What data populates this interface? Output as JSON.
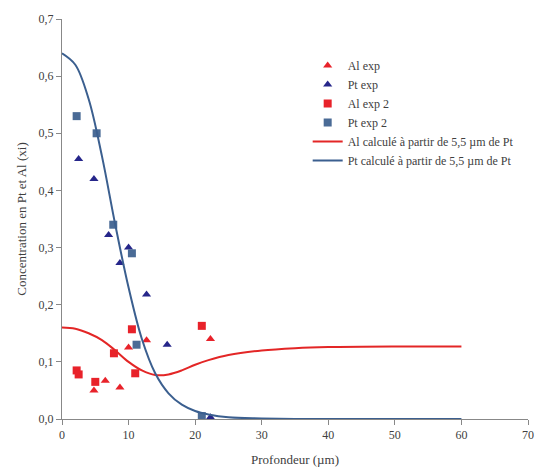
{
  "chart_data": {
    "type": "scatter",
    "x_label": "Profondeur (µm)",
    "y_label": "Concentration en Pt et Al (xi)",
    "xlim": [
      0,
      70
    ],
    "xticks": [
      0,
      10,
      20,
      30,
      40,
      50,
      60,
      70
    ],
    "ylim": [
      0,
      0.7
    ],
    "yticks": [
      {
        "value": 0,
        "label": "0,0"
      },
      {
        "value": 0.1,
        "label": "0,1"
      },
      {
        "value": 0.2,
        "label": "0,2"
      },
      {
        "value": 0.3,
        "label": "0,3"
      },
      {
        "value": 0.4,
        "label": "0,4"
      },
      {
        "value": 0.5,
        "label": "0,5"
      },
      {
        "value": 0.6,
        "label": "0,6"
      },
      {
        "value": 0.7,
        "label": "0,7"
      }
    ],
    "grid": false,
    "legend": "upper right",
    "series": [
      {
        "name": "Al exp",
        "type": "scatter",
        "marker": "triangle-up",
        "color": "#e8222a",
        "x": [
          4.8,
          6.5,
          8.7,
          10,
          12.7,
          22.3
        ],
        "values": [
          0.05,
          0.067,
          0.055,
          0.125,
          0.138,
          0.14
        ]
      },
      {
        "name": "Pt exp",
        "type": "scatter",
        "marker": "triangle-up",
        "color": "#26268a",
        "x": [
          2.5,
          4.8,
          7,
          8.7,
          10,
          12.7,
          15.8,
          22.3
        ],
        "values": [
          0.455,
          0.42,
          0.322,
          0.273,
          0.3,
          0.218,
          0.13,
          0.003
        ]
      },
      {
        "name": "Al exp 2",
        "type": "scatter",
        "marker": "square",
        "color": "#e8222a",
        "x": [
          2.2,
          2.5,
          5,
          7.8,
          10.5,
          11,
          21
        ],
        "values": [
          0.085,
          0.078,
          0.065,
          0.115,
          0.157,
          0.08,
          0.163
        ]
      },
      {
        "name": "Pt exp 2",
        "type": "scatter",
        "marker": "square",
        "color": "#4a6b96",
        "x": [
          2.2,
          5.2,
          7.7,
          10.5,
          11.2,
          21
        ],
        "values": [
          0.53,
          0.5,
          0.34,
          0.29,
          0.13,
          0.005
        ]
      },
      {
        "name": "Al calculé à partir de 5,5 µm de Pt",
        "type": "line",
        "line_style": "solid",
        "color": "#e32626",
        "x": [
          0,
          2,
          4,
          6,
          8,
          10,
          12,
          14,
          16,
          18,
          20,
          22,
          25,
          30,
          35,
          40,
          50,
          60
        ],
        "values": [
          0.16,
          0.158,
          0.15,
          0.138,
          0.12,
          0.1,
          0.085,
          0.077,
          0.078,
          0.085,
          0.095,
          0.103,
          0.112,
          0.12,
          0.124,
          0.126,
          0.127,
          0.127
        ]
      },
      {
        "name": "Pt calculé à partir de 5,5 µm de Pt",
        "type": "line",
        "line_style": "solid",
        "color": "#3b5f8f",
        "x": [
          0,
          2,
          4,
          6,
          8,
          10,
          12,
          14,
          16,
          18,
          20,
          22,
          25,
          30,
          35,
          60
        ],
        "values": [
          0.64,
          0.62,
          0.56,
          0.46,
          0.34,
          0.23,
          0.14,
          0.08,
          0.045,
          0.025,
          0.014,
          0.008,
          0.003,
          0.001,
          0,
          0
        ]
      }
    ]
  }
}
